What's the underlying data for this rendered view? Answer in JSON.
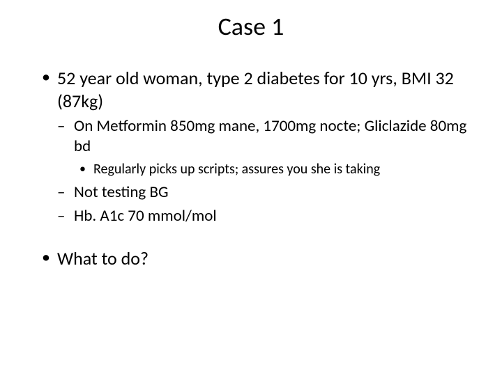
{
  "slide": {
    "title": "Case  1",
    "bullets": {
      "b1": "52 year old woman, type 2 diabetes for 10 yrs, BMI 32 (87kg)",
      "b1_1": "On Metformin 850mg mane, 1700mg nocte; Gliclazide 80mg bd",
      "b1_1_1": "Regularly picks up scripts; assures you she is taking",
      "b1_2": "Not testing BG",
      "b1_3": "Hb. A1c 70 mmol/mol",
      "b2": "What to do?"
    },
    "styling": {
      "background_color": "#ffffff",
      "text_color": "#000000",
      "title_fontsize": 36,
      "level1_fontsize": 26,
      "level2_fontsize": 23,
      "level3_fontsize": 20,
      "font_family": "Calibri"
    }
  }
}
